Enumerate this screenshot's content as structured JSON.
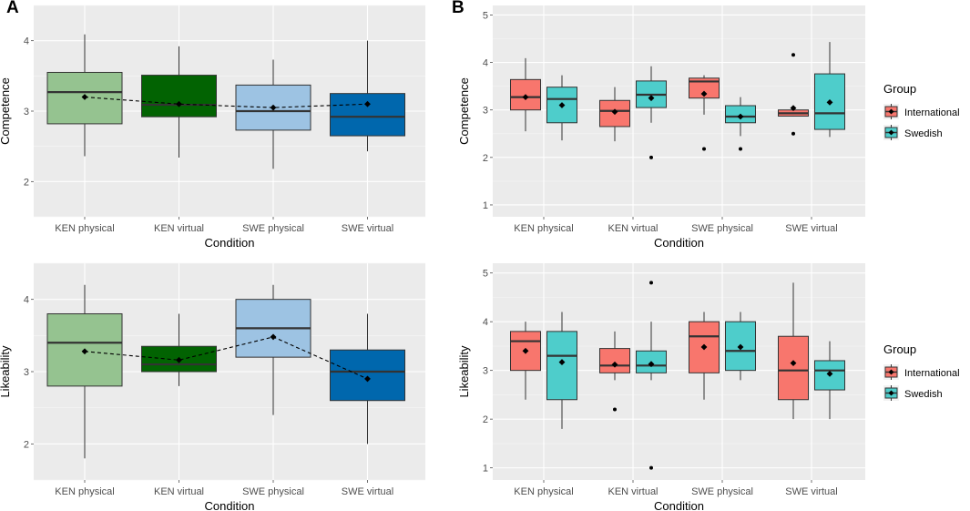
{
  "panel_labels": {
    "a": "A",
    "b": "B"
  },
  "chart_data": [
    {
      "id": "a-competence",
      "type": "box",
      "panel": "A",
      "xlabel": "Condition",
      "ylabel": "Competence",
      "ylim": [
        1.5,
        4.5
      ],
      "yticks": [
        2,
        3,
        4
      ],
      "categories": [
        "KEN physical",
        "KEN virtual",
        "SWE physical",
        "SWE virtual"
      ],
      "grid": true,
      "mean_line": true,
      "boxes": [
        {
          "cat": 0,
          "fill": "#95C390",
          "min": 2.36,
          "q1": 2.82,
          "median": 3.27,
          "q3": 3.55,
          "max": 4.09,
          "mean": 3.2,
          "outliers": []
        },
        {
          "cat": 1,
          "fill": "#026302",
          "min": 2.34,
          "q1": 2.92,
          "median": 3.09,
          "q3": 3.51,
          "max": 3.92,
          "mean": 3.1,
          "outliers": []
        },
        {
          "cat": 2,
          "fill": "#9DC3E3",
          "min": 2.18,
          "q1": 2.73,
          "median": 3.0,
          "q3": 3.37,
          "max": 3.73,
          "mean": 3.05,
          "outliers": []
        },
        {
          "cat": 3,
          "fill": "#0067AD",
          "min": 2.43,
          "q1": 2.65,
          "median": 2.92,
          "q3": 3.25,
          "max": 4.0,
          "mean": 3.1,
          "outliers": []
        }
      ]
    },
    {
      "id": "a-likeability",
      "type": "box",
      "panel": "A",
      "xlabel": "Condition",
      "ylabel": "Likeability",
      "ylim": [
        1.5,
        4.5
      ],
      "yticks": [
        2,
        3,
        4
      ],
      "categories": [
        "KEN physical",
        "KEN virtual",
        "SWE physical",
        "SWE virtual"
      ],
      "grid": true,
      "mean_line": true,
      "boxes": [
        {
          "cat": 0,
          "fill": "#95C390",
          "min": 1.8,
          "q1": 2.8,
          "median": 3.4,
          "q3": 3.8,
          "max": 4.2,
          "mean": 3.28,
          "outliers": []
        },
        {
          "cat": 1,
          "fill": "#026302",
          "min": 2.8,
          "q1": 3.0,
          "median": 3.1,
          "q3": 3.35,
          "max": 3.8,
          "mean": 3.16,
          "outliers": []
        },
        {
          "cat": 2,
          "fill": "#9DC3E3",
          "min": 2.4,
          "q1": 3.2,
          "median": 3.6,
          "q3": 4.0,
          "max": 4.2,
          "mean": 3.48,
          "outliers": []
        },
        {
          "cat": 3,
          "fill": "#0067AD",
          "min": 2.0,
          "q1": 2.6,
          "median": 3.0,
          "q3": 3.3,
          "max": 3.8,
          "mean": 2.9,
          "outliers": []
        }
      ]
    },
    {
      "id": "b-competence",
      "type": "box",
      "panel": "B",
      "xlabel": "Condition",
      "ylabel": "Competence",
      "ylim": [
        0.75,
        5.2
      ],
      "yticks": [
        1,
        2,
        3,
        4,
        5
      ],
      "categories": [
        "KEN physical",
        "KEN virtual",
        "SWE physical",
        "SWE virtual"
      ],
      "grid": true,
      "legend": {
        "title": "Group",
        "entries": [
          {
            "label": "International",
            "color": "#F8766D"
          },
          {
            "label": "Swedish",
            "color": "#4ECDCB"
          }
        ],
        "position": "right"
      },
      "boxes": [
        {
          "cat": 0,
          "group": 0,
          "min": 2.55,
          "q1": 3.0,
          "median": 3.27,
          "q3": 3.64,
          "max": 4.09,
          "mean": 3.27,
          "outliers": []
        },
        {
          "cat": 0,
          "group": 1,
          "min": 2.36,
          "q1": 2.73,
          "median": 3.23,
          "q3": 3.48,
          "max": 3.73,
          "mean": 3.1,
          "outliers": []
        },
        {
          "cat": 1,
          "group": 0,
          "min": 2.34,
          "q1": 2.65,
          "median": 2.98,
          "q3": 3.2,
          "max": 3.48,
          "mean": 2.96,
          "outliers": []
        },
        {
          "cat": 1,
          "group": 1,
          "min": 2.73,
          "q1": 3.05,
          "median": 3.32,
          "q3": 3.61,
          "max": 3.92,
          "mean": 3.25,
          "outliers": [
            2.0
          ]
        },
        {
          "cat": 2,
          "group": 0,
          "min": 2.9,
          "q1": 3.25,
          "median": 3.6,
          "q3": 3.67,
          "max": 3.73,
          "mean": 3.34,
          "outliers": [
            2.18
          ]
        },
        {
          "cat": 2,
          "group": 1,
          "min": 2.45,
          "q1": 2.73,
          "median": 2.86,
          "q3": 3.09,
          "max": 3.27,
          "mean": 2.86,
          "outliers": [
            2.18
          ]
        },
        {
          "cat": 3,
          "group": 0,
          "min": 2.86,
          "q1": 2.87,
          "median": 2.93,
          "q3": 3.0,
          "max": 3.05,
          "mean": 3.04,
          "outliers": [
            4.16,
            2.5
          ]
        },
        {
          "cat": 3,
          "group": 1,
          "min": 2.43,
          "q1": 2.59,
          "median": 2.93,
          "q3": 3.76,
          "max": 4.43,
          "mean": 3.16,
          "outliers": []
        }
      ]
    },
    {
      "id": "b-likeability",
      "type": "box",
      "panel": "B",
      "xlabel": "Condition",
      "ylabel": "Likeability",
      "ylim": [
        0.75,
        5.2
      ],
      "yticks": [
        1,
        2,
        3,
        4,
        5
      ],
      "categories": [
        "KEN physical",
        "KEN virtual",
        "SWE physical",
        "SWE virtual"
      ],
      "grid": true,
      "legend": {
        "title": "Group",
        "entries": [
          {
            "label": "International",
            "color": "#F8766D"
          },
          {
            "label": "Swedish",
            "color": "#4ECDCB"
          }
        ],
        "position": "right"
      },
      "boxes": [
        {
          "cat": 0,
          "group": 0,
          "min": 2.4,
          "q1": 3.0,
          "median": 3.6,
          "q3": 3.8,
          "max": 4.0,
          "mean": 3.4,
          "outliers": []
        },
        {
          "cat": 0,
          "group": 1,
          "min": 1.8,
          "q1": 2.4,
          "median": 3.3,
          "q3": 3.8,
          "max": 4.2,
          "mean": 3.17,
          "outliers": []
        },
        {
          "cat": 1,
          "group": 0,
          "min": 2.8,
          "q1": 2.95,
          "median": 3.1,
          "q3": 3.45,
          "max": 3.8,
          "mean": 3.12,
          "outliers": [
            2.2
          ]
        },
        {
          "cat": 1,
          "group": 1,
          "min": 2.8,
          "q1": 2.95,
          "median": 3.1,
          "q3": 3.4,
          "max": 4.0,
          "mean": 3.13,
          "outliers": [
            4.8,
            1.0
          ]
        },
        {
          "cat": 2,
          "group": 0,
          "min": 2.4,
          "q1": 2.95,
          "median": 3.7,
          "q3": 4.0,
          "max": 4.2,
          "mean": 3.48,
          "outliers": []
        },
        {
          "cat": 2,
          "group": 1,
          "min": 2.8,
          "q1": 3.0,
          "median": 3.4,
          "q3": 4.0,
          "max": 4.2,
          "mean": 3.48,
          "outliers": []
        },
        {
          "cat": 3,
          "group": 0,
          "min": 2.0,
          "q1": 2.4,
          "median": 3.0,
          "q3": 3.7,
          "max": 4.8,
          "mean": 3.15,
          "outliers": []
        },
        {
          "cat": 3,
          "group": 1,
          "min": 2.0,
          "q1": 2.6,
          "median": 3.0,
          "q3": 3.2,
          "max": 3.6,
          "mean": 2.93,
          "outliers": []
        }
      ]
    }
  ]
}
